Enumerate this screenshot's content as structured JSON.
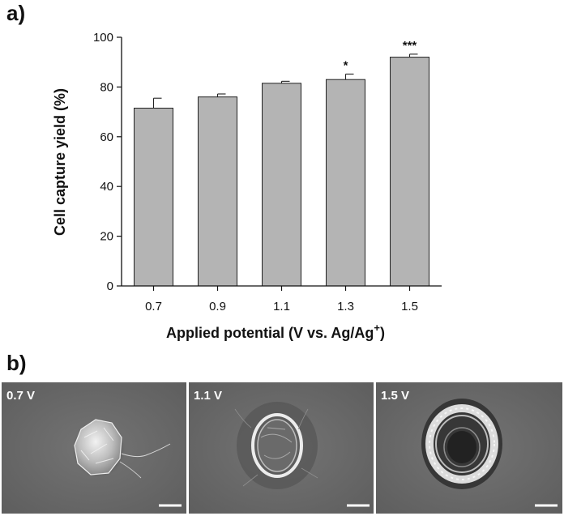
{
  "panels": {
    "a": "a)",
    "b": "b)"
  },
  "chart_data": {
    "type": "bar",
    "categories": [
      "0.7",
      "0.9",
      "1.1",
      "1.3",
      "1.5"
    ],
    "values": [
      71.5,
      76,
      81.5,
      83,
      92
    ],
    "errors": [
      4,
      1.2,
      0.8,
      2.2,
      1.2
    ],
    "significance": [
      "",
      "",
      "",
      "*",
      "***"
    ],
    "title": "",
    "xlabel_main": "Applied potential (V vs. Ag/Ag",
    "xlabel_sup": "+",
    "xlabel_end": ")",
    "ylabel": "Cell capture yield (%)",
    "ylim": [
      0,
      100
    ],
    "yticks": [
      0,
      20,
      40,
      60,
      80,
      100
    ],
    "bar_color": "#b4b4b4",
    "edge_color": "#222222",
    "grid": false
  },
  "sem_images": [
    {
      "label": "0.7 V",
      "type": "compact"
    },
    {
      "label": "1.1 V",
      "type": "spread"
    },
    {
      "label": "1.5 V",
      "type": "ring"
    }
  ],
  "colors": {
    "sem_background": "#6e6e6e",
    "sem_dark": "#2a2a2a",
    "sem_bright": "#e8e8e8"
  }
}
